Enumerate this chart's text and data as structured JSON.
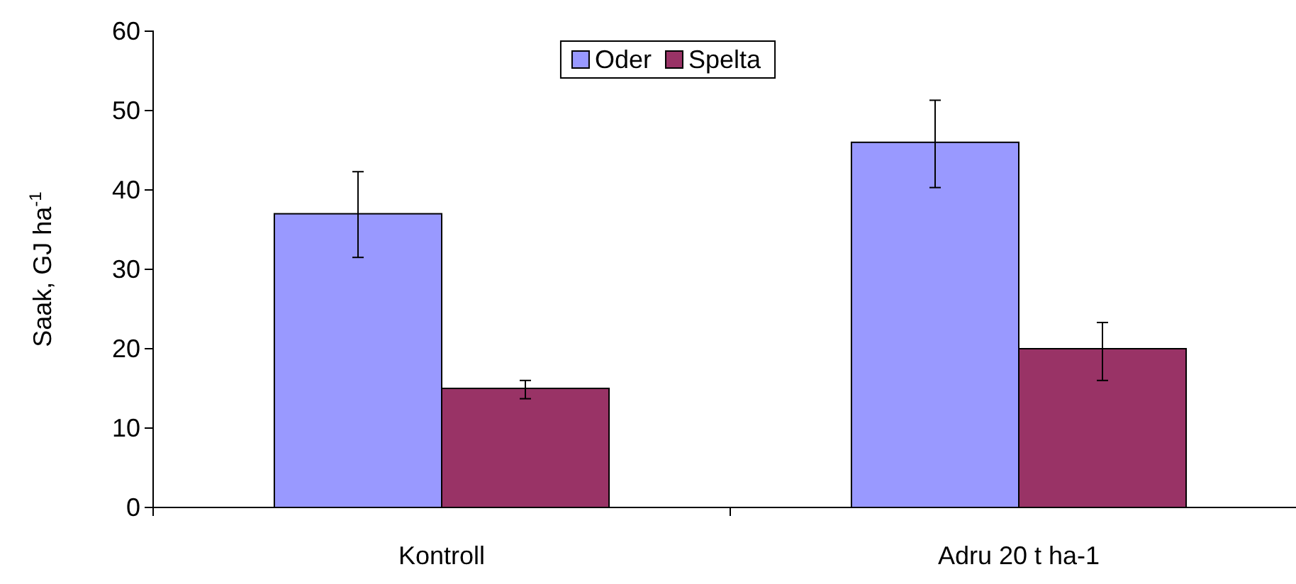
{
  "chart_data": {
    "type": "bar",
    "ylabel": "Saak, GJ ha$^{-1}$",
    "categories": [
      "Kontroll",
      "Adru 20 t ha-1"
    ],
    "series": [
      {
        "name": "Oder",
        "color": "#9999ff",
        "values": [
          37,
          46
        ],
        "errors": [
          [
            31.5,
            42.3
          ],
          [
            40.3,
            51.3
          ]
        ]
      },
      {
        "name": "Spelta",
        "color": "#993366",
        "values": [
          15,
          20
        ],
        "errors": [
          [
            13.7,
            16
          ],
          [
            16,
            23.3
          ]
        ]
      }
    ],
    "ylim": [
      0,
      60
    ],
    "yticks": [
      0,
      10,
      20,
      30,
      40,
      50,
      60
    ],
    "grid": false,
    "legend": "top"
  }
}
